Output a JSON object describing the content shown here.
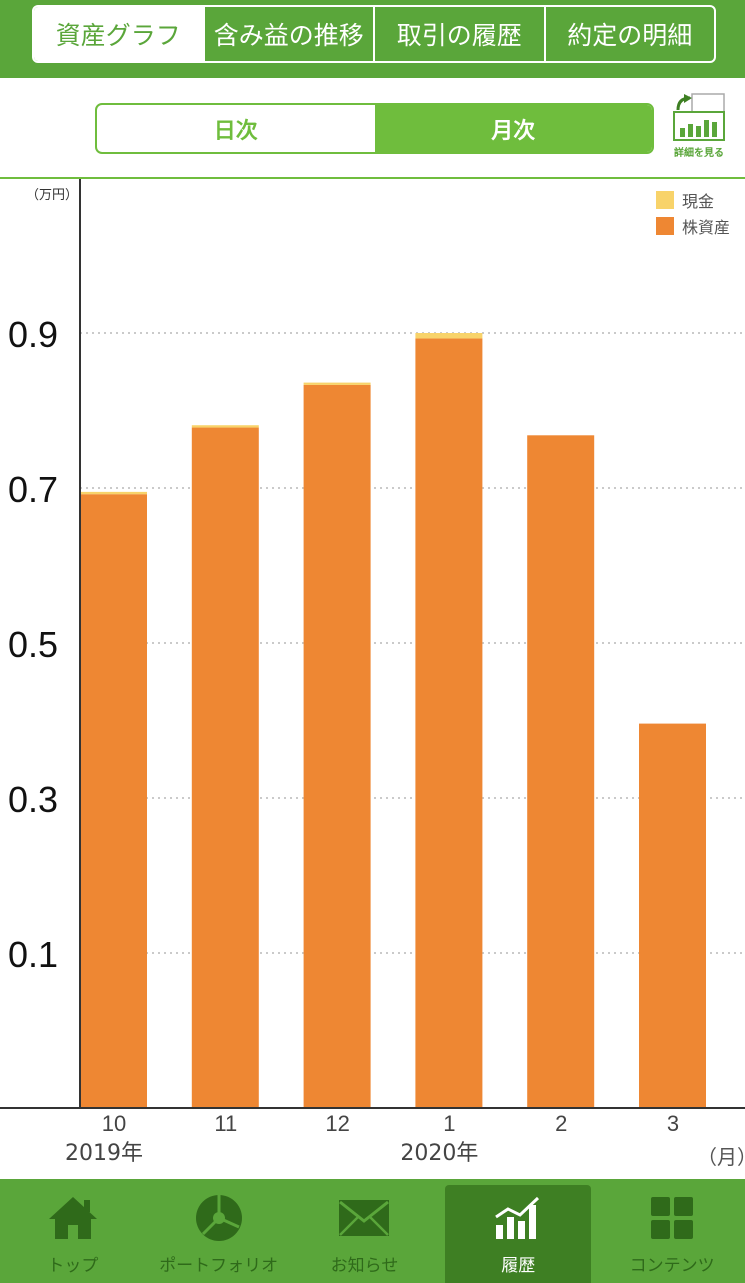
{
  "tabs": [
    {
      "label": "資産グラフ",
      "active": true
    },
    {
      "label": "含み益の推移",
      "active": false
    },
    {
      "label": "取引の履歴",
      "active": false
    },
    {
      "label": "約定の明細",
      "active": false
    }
  ],
  "period_toggle": {
    "daily_label": "日次",
    "monthly_label": "月次",
    "selected": "monthly"
  },
  "detail_button": {
    "label": "詳細を見る",
    "icon": "bar-chart-detail-icon"
  },
  "colors": {
    "brand_green": "#5aa63a",
    "accent_green": "#6fbd3d",
    "stock": "#ee8733",
    "cash": "#f8d36a"
  },
  "chart_data": {
    "type": "bar",
    "stacked": true,
    "y_unit_label": "（万円）",
    "x_unit_label": "（月）",
    "categories": [
      "10",
      "11",
      "12",
      "1",
      "2",
      "3"
    ],
    "year_labels": [
      {
        "at": "10",
        "label": "2019年"
      },
      {
        "at": "1",
        "label": "2020年"
      }
    ],
    "series": [
      {
        "name": "株資産",
        "color": "#ee8733",
        "values": [
          0.692,
          0.778,
          0.833,
          0.893,
          0.768,
          0.396
        ]
      },
      {
        "name": "現金",
        "color": "#f8d36a",
        "values": [
          0.003,
          0.003,
          0.003,
          0.007,
          0.0,
          0.0
        ]
      }
    ],
    "ylim": [
      -0.1,
      1.1
    ],
    "yticks": [
      0.1,
      0.3,
      0.5,
      0.7,
      0.9
    ],
    "grid": "horizontal-dotted",
    "legend_position": "top-right"
  },
  "bottom_nav": [
    {
      "label": "トップ",
      "icon": "home-icon",
      "active": false
    },
    {
      "label": "ポートフォリオ",
      "icon": "pie-chart-icon",
      "active": false
    },
    {
      "label": "お知らせ",
      "icon": "mail-icon",
      "active": false
    },
    {
      "label": "履歴",
      "icon": "history-chart-icon",
      "active": true
    },
    {
      "label": "コンテンツ",
      "icon": "grid-icon",
      "active": false
    }
  ]
}
